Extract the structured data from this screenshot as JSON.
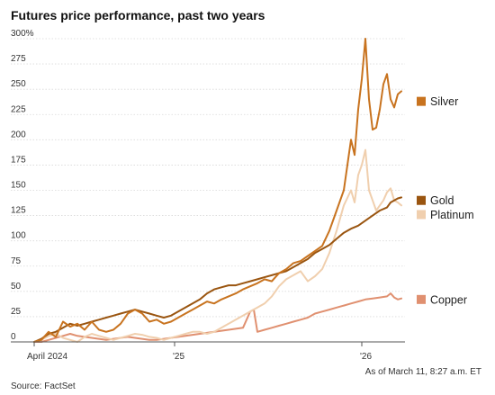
{
  "chart_data": {
    "type": "line",
    "title": "Futures price performance, past two years",
    "xlabel": "",
    "ylabel": "",
    "ylim": [
      0,
      300
    ],
    "xlim": [
      0,
      103
    ],
    "yticks": [
      {
        "v": 300,
        "label": "300%"
      },
      {
        "v": 275,
        "label": "275"
      },
      {
        "v": 250,
        "label": "250"
      },
      {
        "v": 225,
        "label": "225"
      },
      {
        "v": 200,
        "label": "200"
      },
      {
        "v": 175,
        "label": "175"
      },
      {
        "v": 150,
        "label": "150"
      },
      {
        "v": 125,
        "label": "125"
      },
      {
        "v": 100,
        "label": "100"
      },
      {
        "v": 75,
        "label": "75"
      },
      {
        "v": 50,
        "label": "50"
      },
      {
        "v": 25,
        "label": "25"
      },
      {
        "v": 0,
        "label": "0"
      }
    ],
    "xticks": [
      {
        "x": 0,
        "label": "April 2024"
      },
      {
        "x": 39,
        "label": "'25"
      },
      {
        "x": 91,
        "label": "'26"
      }
    ],
    "grid": true,
    "legend": "right",
    "series": [
      {
        "name": "Silver",
        "color": "#c8731f",
        "points": [
          [
            0,
            0
          ],
          [
            2,
            2
          ],
          [
            4,
            10
          ],
          [
            6,
            5
          ],
          [
            8,
            20
          ],
          [
            10,
            15
          ],
          [
            12,
            18
          ],
          [
            14,
            12
          ],
          [
            16,
            20
          ],
          [
            18,
            12
          ],
          [
            20,
            10
          ],
          [
            22,
            12
          ],
          [
            24,
            18
          ],
          [
            26,
            28
          ],
          [
            28,
            32
          ],
          [
            30,
            28
          ],
          [
            32,
            20
          ],
          [
            34,
            22
          ],
          [
            36,
            18
          ],
          [
            38,
            20
          ],
          [
            40,
            24
          ],
          [
            42,
            28
          ],
          [
            44,
            32
          ],
          [
            46,
            36
          ],
          [
            48,
            40
          ],
          [
            50,
            38
          ],
          [
            52,
            42
          ],
          [
            54,
            45
          ],
          [
            56,
            48
          ],
          [
            58,
            52
          ],
          [
            60,
            55
          ],
          [
            62,
            58
          ],
          [
            64,
            62
          ],
          [
            66,
            60
          ],
          [
            68,
            68
          ],
          [
            70,
            72
          ],
          [
            72,
            78
          ],
          [
            74,
            80
          ],
          [
            76,
            85
          ],
          [
            78,
            90
          ],
          [
            80,
            95
          ],
          [
            82,
            110
          ],
          [
            84,
            130
          ],
          [
            86,
            150
          ],
          [
            88,
            200
          ],
          [
            89,
            185
          ],
          [
            90,
            230
          ],
          [
            91,
            260
          ],
          [
            92,
            300
          ],
          [
            93,
            240
          ],
          [
            94,
            210
          ],
          [
            95,
            212
          ],
          [
            96,
            230
          ],
          [
            97,
            255
          ],
          [
            98,
            265
          ],
          [
            99,
            240
          ],
          [
            100,
            232
          ],
          [
            101,
            245
          ],
          [
            102,
            248
          ]
        ]
      },
      {
        "name": "Gold",
        "color": "#9a5510",
        "points": [
          [
            0,
            0
          ],
          [
            2,
            3
          ],
          [
            4,
            8
          ],
          [
            6,
            10
          ],
          [
            8,
            14
          ],
          [
            10,
            18
          ],
          [
            12,
            16
          ],
          [
            14,
            18
          ],
          [
            16,
            20
          ],
          [
            18,
            22
          ],
          [
            20,
            24
          ],
          [
            22,
            26
          ],
          [
            24,
            28
          ],
          [
            26,
            30
          ],
          [
            28,
            32
          ],
          [
            30,
            30
          ],
          [
            32,
            28
          ],
          [
            34,
            26
          ],
          [
            36,
            24
          ],
          [
            38,
            26
          ],
          [
            40,
            30
          ],
          [
            42,
            34
          ],
          [
            44,
            38
          ],
          [
            46,
            42
          ],
          [
            48,
            48
          ],
          [
            50,
            52
          ],
          [
            52,
            54
          ],
          [
            54,
            56
          ],
          [
            56,
            56
          ],
          [
            58,
            58
          ],
          [
            60,
            60
          ],
          [
            62,
            62
          ],
          [
            64,
            64
          ],
          [
            66,
            66
          ],
          [
            68,
            68
          ],
          [
            70,
            70
          ],
          [
            72,
            74
          ],
          [
            74,
            78
          ],
          [
            76,
            82
          ],
          [
            78,
            88
          ],
          [
            80,
            92
          ],
          [
            82,
            96
          ],
          [
            84,
            102
          ],
          [
            86,
            108
          ],
          [
            88,
            112
          ],
          [
            90,
            115
          ],
          [
            92,
            120
          ],
          [
            94,
            125
          ],
          [
            96,
            130
          ],
          [
            98,
            133
          ],
          [
            99,
            138
          ],
          [
            100,
            140
          ],
          [
            101,
            142
          ],
          [
            102,
            143
          ]
        ]
      },
      {
        "name": "Platinum",
        "color": "#f0cfae",
        "points": [
          [
            0,
            0
          ],
          [
            2,
            2
          ],
          [
            4,
            6
          ],
          [
            6,
            8
          ],
          [
            8,
            4
          ],
          [
            10,
            2
          ],
          [
            12,
            0
          ],
          [
            14,
            5
          ],
          [
            16,
            8
          ],
          [
            18,
            6
          ],
          [
            20,
            4
          ],
          [
            22,
            2
          ],
          [
            24,
            4
          ],
          [
            26,
            6
          ],
          [
            28,
            8
          ],
          [
            30,
            7
          ],
          [
            32,
            5
          ],
          [
            34,
            4
          ],
          [
            36,
            2
          ],
          [
            38,
            4
          ],
          [
            40,
            6
          ],
          [
            42,
            8
          ],
          [
            44,
            10
          ],
          [
            46,
            10
          ],
          [
            48,
            8
          ],
          [
            50,
            10
          ],
          [
            52,
            14
          ],
          [
            54,
            18
          ],
          [
            56,
            22
          ],
          [
            58,
            26
          ],
          [
            60,
            30
          ],
          [
            62,
            34
          ],
          [
            64,
            38
          ],
          [
            66,
            45
          ],
          [
            68,
            55
          ],
          [
            70,
            62
          ],
          [
            72,
            66
          ],
          [
            74,
            70
          ],
          [
            76,
            60
          ],
          [
            78,
            65
          ],
          [
            80,
            72
          ],
          [
            82,
            88
          ],
          [
            84,
            110
          ],
          [
            86,
            135
          ],
          [
            88,
            150
          ],
          [
            89,
            138
          ],
          [
            90,
            165
          ],
          [
            91,
            175
          ],
          [
            92,
            190
          ],
          [
            93,
            150
          ],
          [
            94,
            140
          ],
          [
            95,
            130
          ],
          [
            96,
            135
          ],
          [
            97,
            140
          ],
          [
            98,
            148
          ],
          [
            99,
            152
          ],
          [
            100,
            140
          ],
          [
            101,
            138
          ],
          [
            102,
            135
          ]
        ]
      },
      {
        "name": "Copper",
        "color": "#e09070",
        "points": [
          [
            0,
            0
          ],
          [
            2,
            0
          ],
          [
            4,
            2
          ],
          [
            6,
            4
          ],
          [
            8,
            6
          ],
          [
            10,
            8
          ],
          [
            12,
            6
          ],
          [
            14,
            5
          ],
          [
            16,
            4
          ],
          [
            18,
            3
          ],
          [
            20,
            2
          ],
          [
            22,
            3
          ],
          [
            24,
            4
          ],
          [
            26,
            5
          ],
          [
            28,
            4
          ],
          [
            30,
            3
          ],
          [
            32,
            2
          ],
          [
            34,
            2
          ],
          [
            36,
            3
          ],
          [
            38,
            4
          ],
          [
            40,
            5
          ],
          [
            42,
            6
          ],
          [
            44,
            7
          ],
          [
            46,
            8
          ],
          [
            48,
            9
          ],
          [
            50,
            10
          ],
          [
            52,
            11
          ],
          [
            54,
            12
          ],
          [
            56,
            13
          ],
          [
            58,
            14
          ],
          [
            60,
            30
          ],
          [
            61,
            32
          ],
          [
            62,
            10
          ],
          [
            64,
            12
          ],
          [
            66,
            14
          ],
          [
            68,
            16
          ],
          [
            70,
            18
          ],
          [
            72,
            20
          ],
          [
            74,
            22
          ],
          [
            76,
            24
          ],
          [
            78,
            28
          ],
          [
            80,
            30
          ],
          [
            82,
            32
          ],
          [
            84,
            34
          ],
          [
            86,
            36
          ],
          [
            88,
            38
          ],
          [
            90,
            40
          ],
          [
            92,
            42
          ],
          [
            94,
            43
          ],
          [
            96,
            44
          ],
          [
            98,
            45
          ],
          [
            99,
            48
          ],
          [
            100,
            44
          ],
          [
            101,
            42
          ],
          [
            102,
            43
          ]
        ]
      }
    ],
    "legend_items": [
      {
        "label": "Silver",
        "color": "#c8731f",
        "y": 238
      },
      {
        "label": "Gold",
        "color": "#9a5510",
        "y": 140
      },
      {
        "label": "Platinum",
        "color": "#f0cfae",
        "y": 126
      },
      {
        "label": "Copper",
        "color": "#e09070",
        "y": 42
      }
    ],
    "footnote": "As of March 11, 8:27 a.m. ET",
    "source": "Source: FactSet"
  }
}
